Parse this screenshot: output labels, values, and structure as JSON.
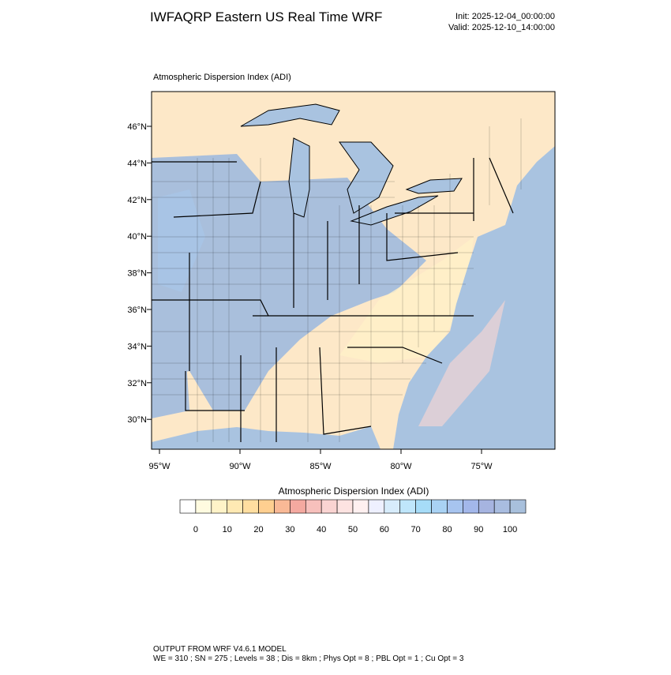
{
  "header": {
    "title": "IWFAQRP Eastern US Real Time WRF",
    "init": "Init: 2025-12-04_00:00:00",
    "valid": "Valid: 2025-12-10_14:00:00"
  },
  "map": {
    "title": "Atmospheric Dispersion Index   (ADI)",
    "lat_labels": [
      "46°N",
      "44°N",
      "42°N",
      "40°N",
      "38°N",
      "36°N",
      "34°N",
      "32°N",
      "30°N"
    ],
    "lon_labels": [
      "95°W",
      "90°W",
      "85°W",
      "80°W",
      "75°W"
    ]
  },
  "colorbar": {
    "title": "Atmospheric Dispersion Index  (ADI)",
    "ticks": [
      0,
      10,
      20,
      30,
      40,
      50,
      60,
      70,
      80,
      90,
      100
    ],
    "colors": [
      "#ffffff",
      "#fffbe0",
      "#fff3c8",
      "#ffe9b3",
      "#ffdea0",
      "#ffcf90",
      "#f9b996",
      "#f4a9a0",
      "#f7c0bc",
      "#fad4d2",
      "#fde3e1",
      "#fff0f0",
      "#eef0ff",
      "#d7ecfb",
      "#bfe6fb",
      "#a6dcf8",
      "#a9d2f4",
      "#a7c4ef",
      "#a3b7ea",
      "#a6b4e0",
      "#a9bde0",
      "#a8c0dc"
    ]
  },
  "footer": {
    "lines": [
      "OUTPUT FROM WRF V4.6.1 MODEL",
      "WE = 310 ; SN = 275 ; Levels = 38 ; Dis = 8km ; Phys Opt = 8 ; PBL Opt = 1 ; Cu Opt = 3"
    ]
  }
}
